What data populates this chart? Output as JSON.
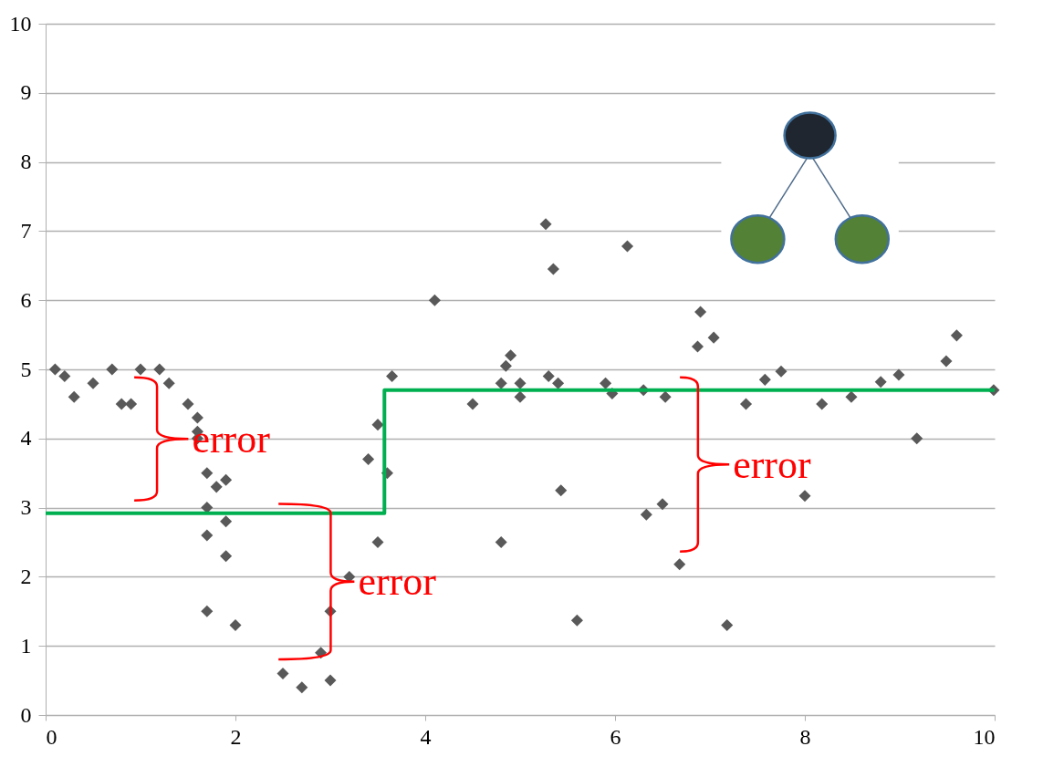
{
  "chart_data": {
    "type": "scatter",
    "grid": "y",
    "xlim": [
      0,
      10
    ],
    "ylim": [
      0,
      10
    ],
    "xticks": [
      0,
      2,
      4,
      6,
      8,
      10
    ],
    "yticks": [
      0,
      1,
      2,
      3,
      4,
      5,
      6,
      7,
      8,
      9,
      10
    ],
    "series": [
      {
        "marker": "diamond",
        "color": "#595959",
        "x": [
          0.1,
          0.2,
          0.3,
          0.5,
          0.7,
          0.8,
          0.9,
          1.0,
          1.2,
          1.3,
          1.5,
          1.6,
          1.6,
          1.6,
          1.7,
          1.8,
          1.9,
          1.7,
          1.9,
          1.7,
          1.9,
          1.7,
          2.0,
          3.2,
          3.0,
          2.5,
          2.7,
          2.9,
          3.0,
          3.4,
          3.5,
          3.6,
          3.5,
          3.65,
          4.1,
          4.5,
          4.8,
          4.85,
          4.9,
          4.8,
          5.0,
          5.0,
          5.27,
          5.35,
          5.3,
          5.4,
          5.43,
          5.6,
          5.9,
          5.97,
          6.13,
          6.3,
          6.33,
          6.53,
          6.5,
          6.68,
          6.9,
          6.87,
          7.04,
          7.18,
          7.38,
          7.58,
          7.75,
          8.0,
          8.18,
          8.49,
          8.8,
          8.99,
          9.18,
          9.49,
          9.6,
          9.99
        ],
        "values": [
          5.0,
          4.9,
          4.6,
          4.8,
          5.0,
          4.5,
          4.5,
          5.0,
          5.0,
          4.8,
          4.5,
          4.3,
          4.1,
          4.0,
          3.5,
          3.3,
          3.4,
          3.0,
          2.8,
          2.6,
          2.3,
          1.5,
          1.3,
          2.0,
          1.5,
          0.6,
          0.4,
          0.9,
          0.5,
          3.7,
          4.2,
          3.5,
          2.5,
          4.9,
          6.0,
          4.5,
          4.8,
          5.05,
          5.2,
          2.5,
          4.8,
          4.6,
          7.1,
          6.45,
          4.9,
          4.8,
          3.25,
          1.37,
          4.8,
          4.65,
          6.78,
          4.7,
          2.9,
          4.6,
          3.05,
          2.18,
          5.83,
          5.33,
          5.46,
          1.3,
          4.5,
          4.85,
          4.97,
          3.17,
          4.5,
          4.6,
          4.82,
          4.92,
          4.0,
          5.12,
          5.49,
          4.7
        ]
      },
      {
        "type": "step",
        "color": "#00b050",
        "x": [
          0,
          3.57,
          10
        ],
        "values": [
          2.92,
          4.7,
          4.7
        ]
      }
    ],
    "annotations": [
      "error",
      "error",
      "error"
    ]
  }
}
